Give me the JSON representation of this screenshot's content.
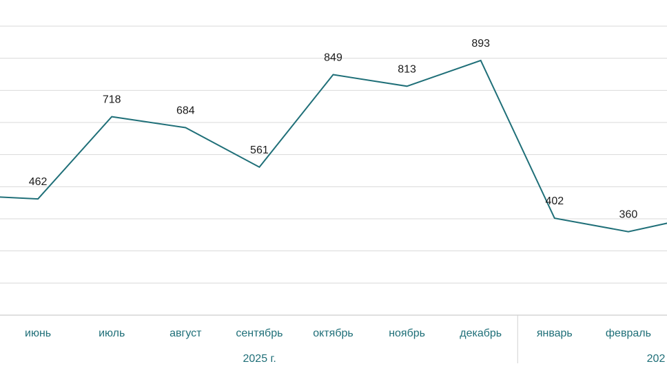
{
  "chart_data": {
    "type": "line",
    "categories": [
      "",
      "июнь",
      "июль",
      "август",
      "сентябрь",
      "октябрь",
      "ноябрь",
      "декабрь",
      "январь",
      "февраль",
      ""
    ],
    "series": [
      {
        "values": [
          473,
          462,
          718,
          684,
          561,
          849,
          813,
          893,
          402,
          360,
          410
        ]
      }
    ],
    "data_labels": [
      "",
      "462",
      "718",
      "684",
      "561",
      "849",
      "813",
      "893",
      "402",
      "360",
      ""
    ],
    "year_labels": [
      "2025 г.",
      "202"
    ],
    "ylim": [
      100,
      1000
    ],
    "grid": true,
    "legend": "none",
    "colors": {
      "line": "#1f6f78",
      "axis_text": "#1f6f78",
      "label_text": "#1a1a1a",
      "grid": "#d9d9d9"
    }
  }
}
